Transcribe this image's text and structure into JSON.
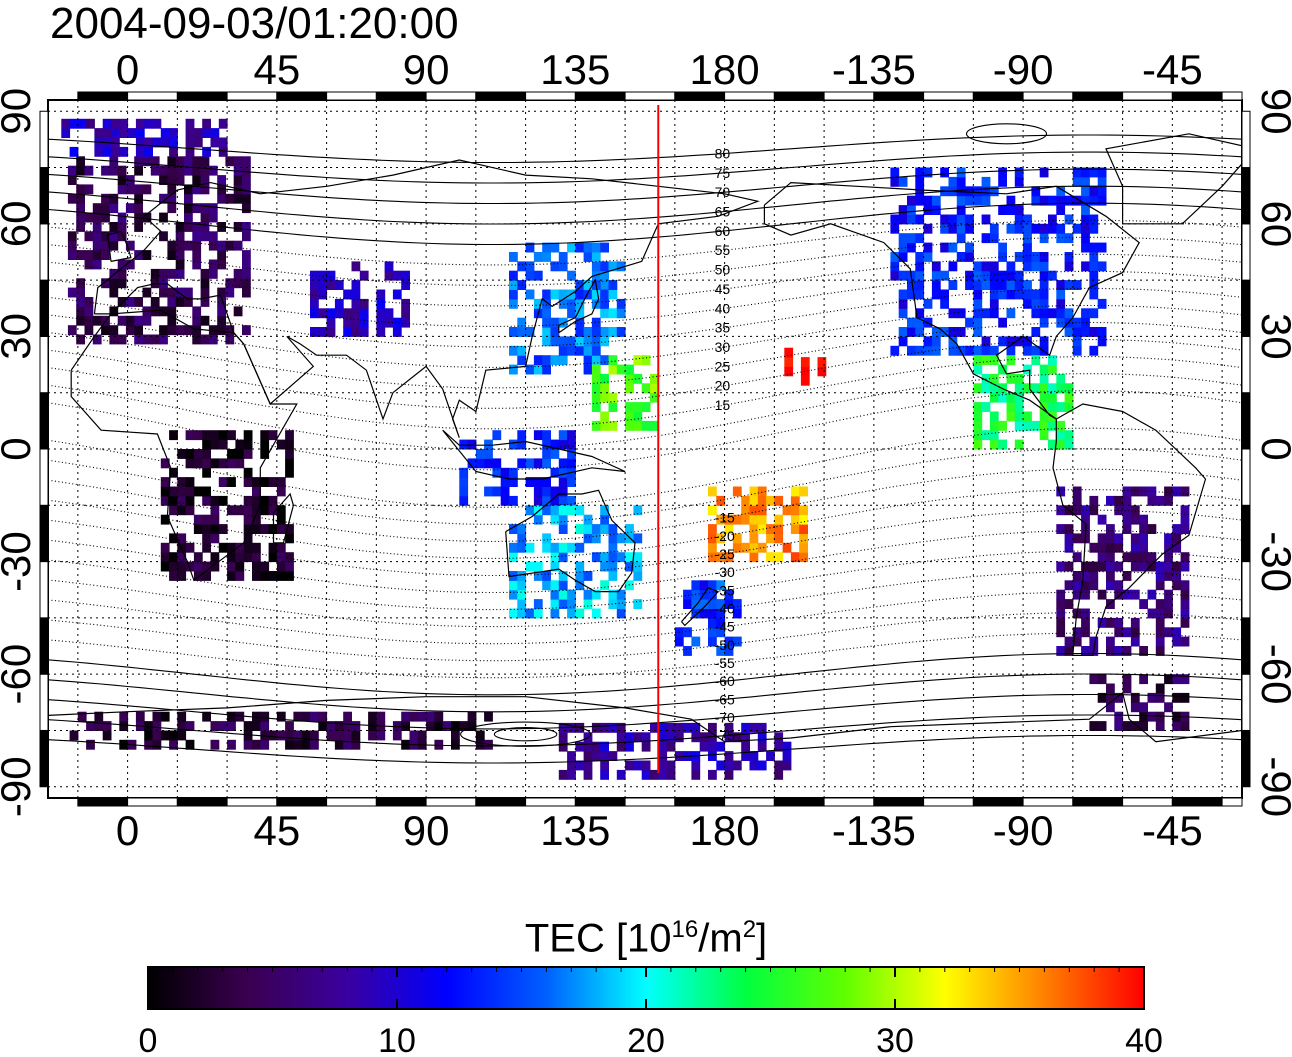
{
  "title": "2004-09-03/01:20:00",
  "map": {
    "x_ticks": [
      "0",
      "45",
      "90",
      "135",
      "180",
      "-135",
      "-90",
      "-45"
    ],
    "x_tick_lons": [
      0,
      45,
      90,
      135,
      180,
      225,
      270,
      315
    ],
    "y_ticks": [
      "90",
      "60",
      "30",
      "0",
      "-30",
      "-60",
      "-90"
    ],
    "y_tick_lats": [
      90,
      60,
      30,
      0,
      -30,
      -60,
      -90
    ],
    "lon_range": [
      -24,
      336
    ],
    "lat_range": [
      -93,
      93
    ],
    "grid": "dotted, 15 degree",
    "terminator_lon": 160,
    "terminator_color": "#ff0000",
    "magnetic_lat_labels_north": [
      "80",
      "75",
      "70",
      "65",
      "60",
      "55",
      "50",
      "45",
      "40",
      "35",
      "30",
      "25",
      "20",
      "15"
    ],
    "magnetic_lat_labels_south": [
      "-15",
      "-20",
      "-25",
      "-30",
      "-35",
      "-40",
      "-45",
      "-50",
      "-55",
      "-60",
      "-65",
      "-70",
      "-75"
    ]
  },
  "colorbar": {
    "title_main": "TEC  [10",
    "title_exp1": "16",
    "title_mid": "/m",
    "title_exp2": "2",
    "title_end": "]",
    "min": 0,
    "max": 40,
    "ticks": [
      "0",
      "10",
      "20",
      "30",
      "40"
    ],
    "colors": [
      "#000000",
      "#3a0050",
      "#3a00a0",
      "#0000ff",
      "#0060ff",
      "#00ffff",
      "#00ff40",
      "#60ff00",
      "#ffff00",
      "#ff8000",
      "#ff0000"
    ]
  },
  "tec_regions": [
    {
      "name": "europe",
      "lon_range": [
        -18,
        35
      ],
      "lat_range": [
        28,
        78
      ],
      "tec": 4
    },
    {
      "name": "north-scandinavia",
      "lon_range": [
        -20,
        30
      ],
      "lat_range": [
        78,
        88
      ],
      "tec": 9
    },
    {
      "name": "central-asia",
      "lon_range": [
        55,
        85
      ],
      "lat_range": [
        30,
        50
      ],
      "tec": 9
    },
    {
      "name": "east-asia",
      "lon_range": [
        115,
        145
      ],
      "lat_range": [
        20,
        55
      ],
      "tec": 16
    },
    {
      "name": "japan-east",
      "lon_range": [
        140,
        150
      ],
      "lat_range": [
        30,
        50
      ],
      "tec": 17
    },
    {
      "name": "west-pacific",
      "lon_range": [
        140,
        158
      ],
      "lat_range": [
        5,
        25
      ],
      "tec": 27
    },
    {
      "name": "southeast-asia",
      "lon_range": [
        100,
        135
      ],
      "lat_range": [
        -15,
        5
      ],
      "tec": 13
    },
    {
      "name": "australia",
      "lon_range": [
        115,
        155
      ],
      "lat_range": [
        -45,
        -15
      ],
      "tec": 18
    },
    {
      "name": "new-zealand",
      "lon_range": [
        165,
        185
      ],
      "lat_range": [
        -55,
        -35
      ],
      "tec": 14
    },
    {
      "name": "south-pacific",
      "lon_range": [
        175,
        205
      ],
      "lat_range": [
        -30,
        -10
      ],
      "tec": 35
    },
    {
      "name": "hawaii",
      "lon_range": [
        198,
        210
      ],
      "lat_range": [
        17,
        25
      ],
      "tec": 39
    },
    {
      "name": "north-america",
      "lon_range": [
        230,
        295
      ],
      "lat_range": [
        25,
        75
      ],
      "tec": 13
    },
    {
      "name": "central-america",
      "lon_range": [
        255,
        285
      ],
      "lat_range": [
        0,
        25
      ],
      "tec": 24
    },
    {
      "name": "south-america",
      "lon_range": [
        280,
        320
      ],
      "lat_range": [
        -55,
        -10
      ],
      "tec": 6
    },
    {
      "name": "africa",
      "lon_range": [
        10,
        50
      ],
      "lat_range": [
        -35,
        5
      ],
      "tec": 2
    },
    {
      "name": "antarctica-east",
      "lon_range": [
        -20,
        110
      ],
      "lat_range": [
        -80,
        -70
      ],
      "tec": 3
    },
    {
      "name": "antarctica-pacific",
      "lon_range": [
        130,
        200
      ],
      "lat_range": [
        -88,
        -75
      ],
      "tec": 8
    },
    {
      "name": "antarctica-south-america",
      "lon_range": [
        290,
        320
      ],
      "lat_range": [
        -75,
        -60
      ],
      "tec": 4
    }
  ]
}
